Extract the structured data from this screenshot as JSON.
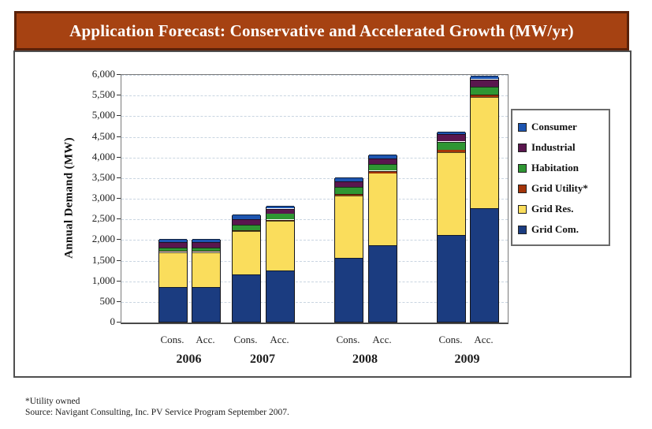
{
  "header": {
    "title": "Application Forecast: Conservative and Accelerated Growth (MW/yr)",
    "bg_color": "#A64212",
    "border_color": "#5A2109",
    "text_color": "#FFFFFF"
  },
  "footer": {
    "line1": "*Utility owned",
    "line2": "Source: Navigant Consulting, Inc. PV Service Program September 2007."
  },
  "chart_data": {
    "type": "bar",
    "stacked": true,
    "title": "Application Forecast: Conservative and Accelerated Growth (MW/yr)",
    "ylabel": "Annual Demand (MW)",
    "ylim": [
      0,
      6000
    ],
    "ytick_step": 500,
    "ytick_labels": [
      "0",
      "500",
      "1,000",
      "1,500",
      "2,000",
      "2,500",
      "3,000",
      "3,500",
      "4,000",
      "4,500",
      "5,000",
      "5,500",
      "6,000"
    ],
    "grid": "horizontal-dashed",
    "gridline_color": "#C9D5E1",
    "legend_position": "right",
    "groups": [
      "2006",
      "2007",
      "2008",
      "2009"
    ],
    "bar_labels": [
      "Cons.",
      "Acc."
    ],
    "categories": [
      "2006 Cons.",
      "2006 Acc.",
      "2007 Cons.",
      "2007 Acc.",
      "2008 Cons.",
      "2008 Acc.",
      "2009 Cons.",
      "2009 Acc."
    ],
    "totals": [
      2000,
      2000,
      2600,
      2800,
      3500,
      4050,
      4600,
      5950
    ],
    "series": [
      {
        "name": "Grid Com.",
        "color": "#1B3C80",
        "values": [
          850,
          850,
          1150,
          1250,
          1550,
          1850,
          2100,
          2750
        ]
      },
      {
        "name": "Grid Res.",
        "color": "#FADD5C",
        "values": [
          850,
          850,
          1050,
          1200,
          1500,
          1750,
          2000,
          2700
        ]
      },
      {
        "name": "Grid Utility*",
        "color": "#A33409",
        "values": [
          15,
          15,
          25,
          25,
          40,
          60,
          70,
          50
        ]
      },
      {
        "name": "Habitation",
        "color": "#2F9633",
        "values": [
          85,
          85,
          125,
          150,
          170,
          160,
          200,
          200
        ]
      },
      {
        "name": "Industrial",
        "color": "#5A164E",
        "values": [
          130,
          130,
          130,
          120,
          140,
          130,
          170,
          180
        ]
      },
      {
        "name": "Consumer",
        "color": "#1D55B0",
        "values": [
          70,
          70,
          120,
          55,
          100,
          100,
          60,
          70
        ]
      }
    ],
    "legend_order": [
      "Consumer",
      "Industrial",
      "Habitation",
      "Grid Utility*",
      "Grid Res.",
      "Grid Com."
    ]
  }
}
